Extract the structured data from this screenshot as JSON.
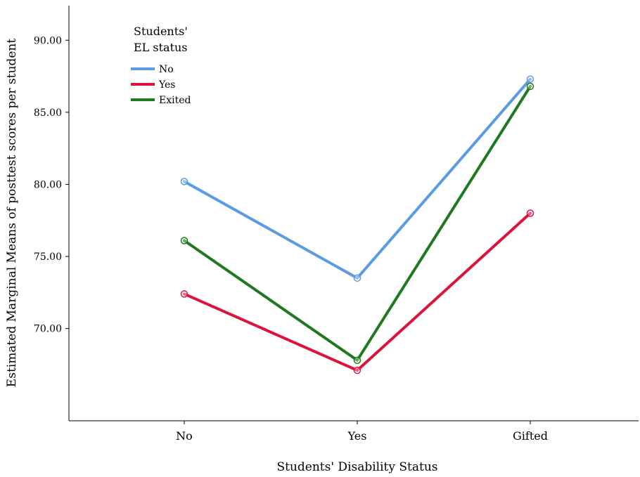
{
  "chart_data": {
    "type": "line",
    "title": "",
    "xlabel": "Students' Disability Status",
    "ylabel": "Estimated Marginal Means of posttest scores per student",
    "categories": [
      "No",
      "Yes",
      "Gifted"
    ],
    "ylim": [
      63.6,
      92.4
    ],
    "yticks": [
      70,
      75,
      80,
      85,
      90
    ],
    "ytick_labels": [
      "70.00",
      "75.00",
      "80.00",
      "85.00",
      "90.00"
    ],
    "grid": false,
    "legend": {
      "title_lines": [
        "Students'",
        "EL status"
      ],
      "placement": "top-left"
    },
    "series": [
      {
        "name": "No",
        "color": "#5b9be6",
        "values": [
          80.2,
          73.5,
          87.3
        ]
      },
      {
        "name": "Yes",
        "color": "#dc143c",
        "values": [
          72.4,
          67.1,
          78.0
        ]
      },
      {
        "name": "Exited",
        "color": "#1f7a1f",
        "values": [
          76.1,
          67.8,
          86.8
        ]
      }
    ]
  }
}
